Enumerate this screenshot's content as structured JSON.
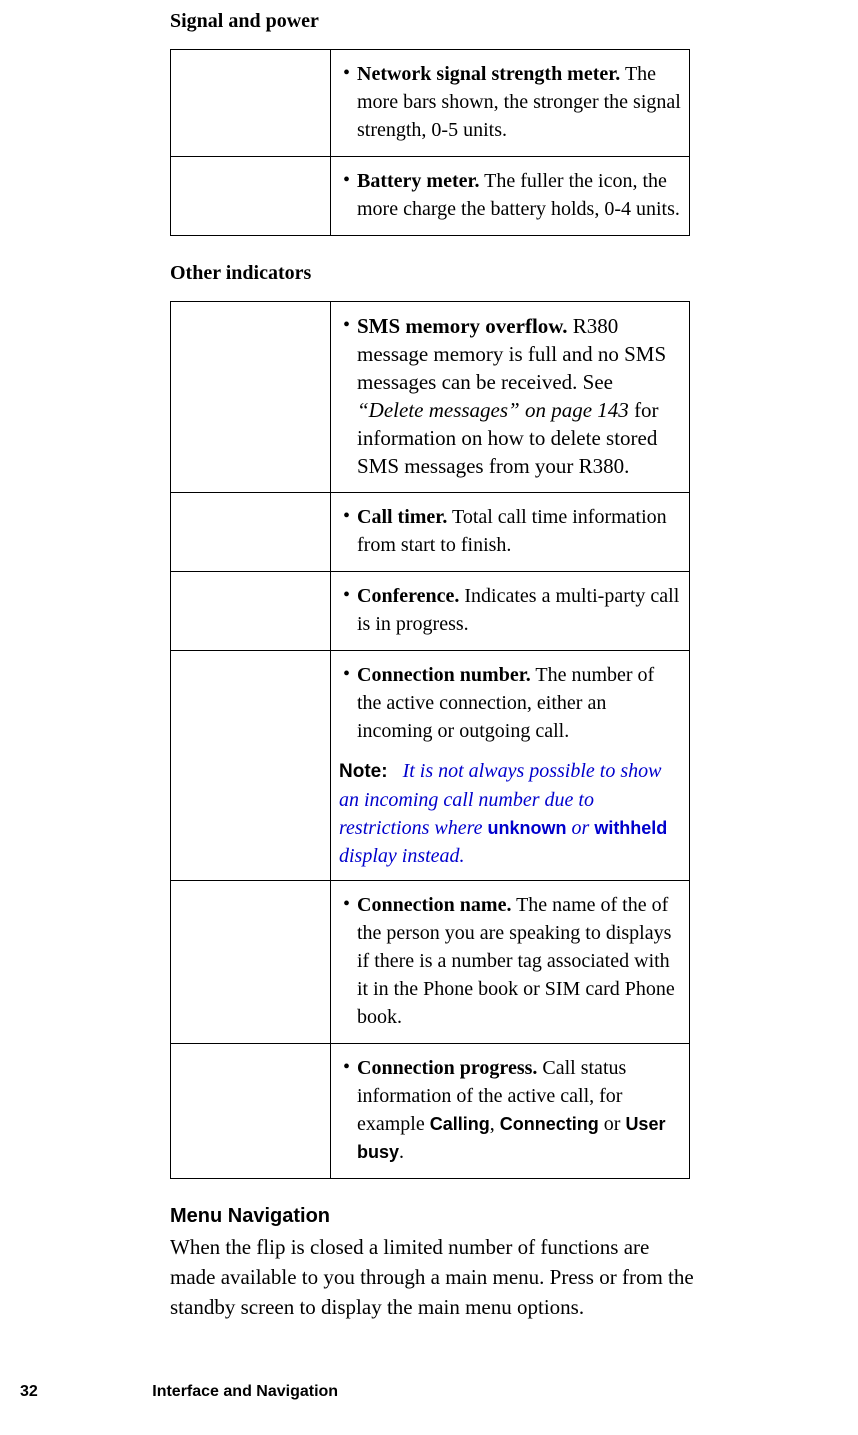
{
  "section1": {
    "heading": "Signal and power",
    "rows": [
      {
        "term": "Network signal strength meter.",
        "desc": " The more bars shown, the stronger the signal strength, 0-5 units."
      },
      {
        "term": "Battery meter.",
        "desc": " The fuller the icon, the more charge the battery holds, 0-4 units."
      }
    ]
  },
  "section2": {
    "heading": "Other indicators",
    "rows": {
      "r0": {
        "term": "SMS memory overflow.",
        "desc_a": " R380 message memory is full and no SMS messages can be received. See ",
        "ref": "“Delete messages” on page 143",
        "desc_b": " for information on how to delete stored SMS messages from your R380."
      },
      "r1": {
        "term": "Call timer.",
        "desc": " Total call time information from start to finish."
      },
      "r2": {
        "term": "Conference.",
        "desc": " Indicates a multi-party call is in progress."
      },
      "r3": {
        "term": "Connection number.",
        "desc": " The number of the active connection, either an incoming or outgoing call.",
        "note_label": "Note:",
        "note_a": "It is not always possible to show an incoming call number due to restrictions where ",
        "note_kw1": "unknown",
        "note_mid": " or ",
        "note_kw2": "withheld",
        "note_b": " display instead."
      },
      "r4": {
        "term": "Connection name.",
        "desc": " The name of the of the person you are speaking to displays if there is a number tag associated with it in the Phone book or SIM card Phone book."
      },
      "r5": {
        "term": "Connection progress.",
        "desc_a": " Call status information of the active call, for example ",
        "kw1": "Calling",
        "sep1": ", ",
        "kw2": "Connecting",
        "sep2": " or ",
        "kw3": "User busy",
        "tail": "."
      }
    }
  },
  "menu": {
    "heading": "Menu Navigation",
    "p_a": "When the flip is closed a limited number of functions are made available to you through a main menu. Press ",
    "p_gap1": "     ",
    "p_mid": " or ",
    "p_gap2": "     ",
    "p_b": " from the standby screen to display the main menu options."
  },
  "footer": {
    "page": "32",
    "chapter": "Interface and Navigation"
  },
  "bullet": "•"
}
